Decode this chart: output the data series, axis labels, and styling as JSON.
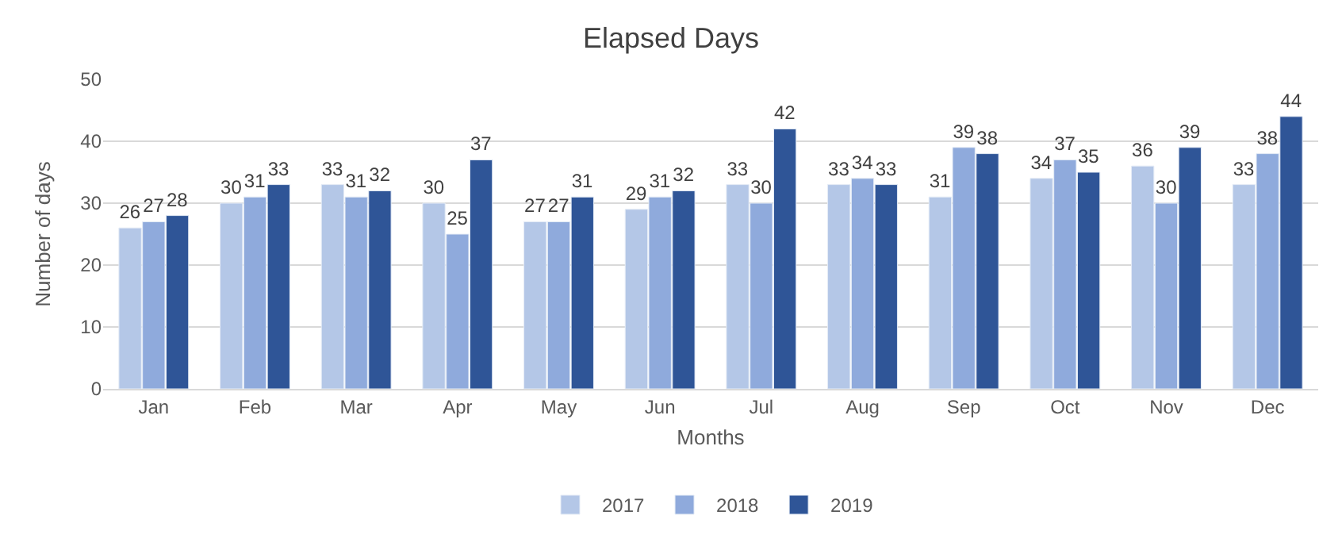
{
  "chart_data": {
    "type": "bar",
    "title": "Elapsed Days",
    "xlabel": "Months",
    "ylabel": "Number of days",
    "categories": [
      "Jan",
      "Feb",
      "Mar",
      "Apr",
      "May",
      "Jun",
      "Jul",
      "Aug",
      "Sep",
      "Oct",
      "Nov",
      "Dec"
    ],
    "series": [
      {
        "name": "2017",
        "color": "#b4c7e7",
        "values": [
          26,
          30,
          33,
          30,
          27,
          29,
          33,
          33,
          31,
          34,
          36,
          33
        ]
      },
      {
        "name": "2018",
        "color": "#8faadc",
        "values": [
          27,
          31,
          31,
          25,
          27,
          31,
          30,
          34,
          39,
          37,
          30,
          38
        ]
      },
      {
        "name": "2019",
        "color": "#2f5597",
        "values": [
          28,
          33,
          32,
          37,
          31,
          32,
          42,
          33,
          38,
          35,
          39,
          44
        ]
      }
    ],
    "ylim": [
      0,
      50
    ],
    "yticks": [
      0,
      10,
      20,
      30,
      40,
      50
    ],
    "grid": "y",
    "legend": "bottom",
    "data_labels": true
  }
}
